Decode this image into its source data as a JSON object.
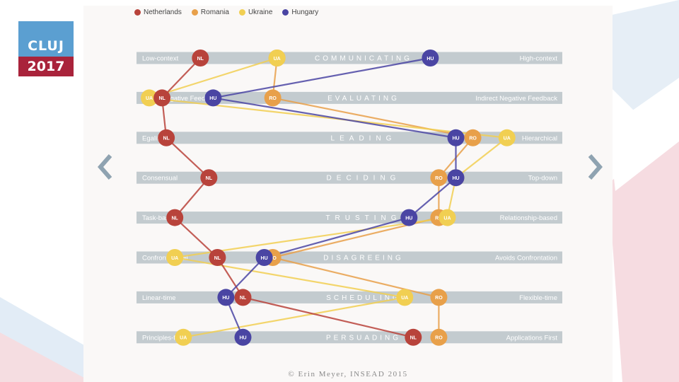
{
  "logo": {
    "line1": "CLUJ",
    "line2": "2017"
  },
  "colors": {
    "Netherlands": "#b8433b",
    "Romania": "#e8a04a",
    "Ukraine": "#f1cf52",
    "Hungary": "#4a45a3",
    "bar": "#c3cbcf"
  },
  "nav": {
    "prev_icon": "chevron-left-icon",
    "next_icon": "chevron-right-icon"
  },
  "copyright": "© Erin Meyer, INSEAD 2015",
  "chart_data": {
    "type": "line",
    "legend": {
      "placement": "top-left",
      "entries": [
        "Netherlands",
        "Romania",
        "Ukraine",
        "Hungary"
      ]
    },
    "scales": [
      {
        "name": "COMMUNICATING",
        "left": "Low-context",
        "right": "High-context"
      },
      {
        "name": "EVALUATING",
        "left": "Direct Negative Feedback",
        "right": "Indirect Negative Feedback"
      },
      {
        "name": "LEADING",
        "left": "Egalitarian",
        "right": "Hierarchical"
      },
      {
        "name": "DECIDING",
        "left": "Consensual",
        "right": "Top-down"
      },
      {
        "name": "TRUSTING",
        "left": "Task-based",
        "right": "Relationship-based"
      },
      {
        "name": "DISAGREEING",
        "left": "Confrontational",
        "right": "Avoids Confrontation"
      },
      {
        "name": "SCHEDULING",
        "left": "Linear-time",
        "right": "Flexible-time"
      },
      {
        "name": "PERSUADING",
        "left": "Principles-first",
        "right": "Applications First"
      }
    ],
    "x_range": [
      0,
      1
    ],
    "series": [
      {
        "name": "Netherlands",
        "code": "NL",
        "values": [
          0.15,
          0.06,
          0.07,
          0.17,
          0.09,
          0.19,
          0.25,
          0.65
        ]
      },
      {
        "name": "Romania",
        "code": "RO",
        "values": [
          0.33,
          0.32,
          0.79,
          0.71,
          0.71,
          0.32,
          0.71,
          0.71
        ]
      },
      {
        "name": "Ukraine",
        "code": "UA",
        "values": [
          0.33,
          0.03,
          0.87,
          0.75,
          0.73,
          0.09,
          0.63,
          0.11
        ]
      },
      {
        "name": "Hungary",
        "code": "HU",
        "values": [
          0.69,
          0.18,
          0.75,
          0.75,
          0.64,
          0.3,
          0.21,
          0.25
        ]
      }
    ]
  }
}
